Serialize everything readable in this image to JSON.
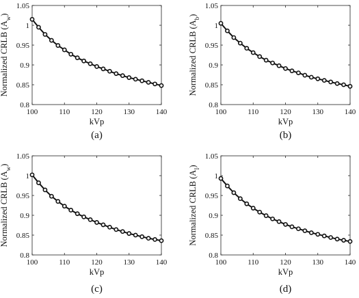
{
  "chart_data": [
    {
      "type": "line",
      "panel_label": "(a)",
      "xlabel": "kVp",
      "ylabel": "Normalized CRLB (A",
      "ylabel_sub": "w",
      "xlim": [
        100,
        140
      ],
      "ylim": [
        0.8,
        1.05
      ],
      "xticks": [
        "100",
        "110",
        "120",
        "130",
        "140"
      ],
      "yticks": [
        "0.8",
        "0.85",
        "0.9",
        "0.95",
        "1",
        "1.05"
      ],
      "x": [
        100,
        102,
        104,
        106,
        108,
        110,
        112,
        114,
        116,
        118,
        120,
        122,
        124,
        126,
        128,
        130,
        132,
        134,
        136,
        138,
        140
      ],
      "y": [
        1.015,
        0.995,
        0.977,
        0.962,
        0.949,
        0.938,
        0.927,
        0.918,
        0.91,
        0.903,
        0.896,
        0.89,
        0.884,
        0.878,
        0.873,
        0.868,
        0.864,
        0.86,
        0.856,
        0.852,
        0.848
      ]
    },
    {
      "type": "line",
      "panel_label": "(b)",
      "xlabel": "kVp",
      "ylabel": "Normalized CRLB (A",
      "ylabel_sub": "b",
      "xlim": [
        100,
        140
      ],
      "ylim": [
        0.8,
        1.05
      ],
      "xticks": [
        "100",
        "110",
        "120",
        "130",
        "140"
      ],
      "yticks": [
        "0.8",
        "0.85",
        "0.9",
        "0.95",
        "1",
        "1.05"
      ],
      "x": [
        100,
        102,
        104,
        106,
        108,
        110,
        112,
        114,
        116,
        118,
        120,
        122,
        124,
        126,
        128,
        130,
        132,
        134,
        136,
        138,
        140
      ],
      "y": [
        1.005,
        0.986,
        0.969,
        0.955,
        0.942,
        0.931,
        0.921,
        0.912,
        0.905,
        0.898,
        0.891,
        0.885,
        0.88,
        0.874,
        0.869,
        0.865,
        0.861,
        0.857,
        0.853,
        0.85,
        0.846
      ]
    },
    {
      "type": "line",
      "panel_label": "(c)",
      "xlabel": "kVp",
      "ylabel": "Normalized CRLB (A",
      "ylabel_sub": "w",
      "xlim": [
        100,
        140
      ],
      "ylim": [
        0.8,
        1.05
      ],
      "xticks": [
        "100",
        "110",
        "120",
        "130",
        "140"
      ],
      "yticks": [
        "0.8",
        "0.85",
        "0.9",
        "0.95",
        "1",
        "1.05"
      ],
      "x": [
        100,
        102,
        104,
        106,
        108,
        110,
        112,
        114,
        116,
        118,
        120,
        122,
        124,
        126,
        128,
        130,
        132,
        134,
        136,
        138,
        140
      ],
      "y": [
        1.002,
        0.982,
        0.964,
        0.948,
        0.935,
        0.923,
        0.913,
        0.904,
        0.896,
        0.889,
        0.882,
        0.876,
        0.87,
        0.864,
        0.859,
        0.854,
        0.85,
        0.846,
        0.842,
        0.839,
        0.836
      ]
    },
    {
      "type": "line",
      "panel_label": "(d)",
      "xlabel": "kVp",
      "ylabel": "Normalized CRLB (A",
      "ylabel_sub": "I",
      "xlim": [
        100,
        140
      ],
      "ylim": [
        0.8,
        1.05
      ],
      "xticks": [
        "100",
        "110",
        "120",
        "130",
        "140"
      ],
      "yticks": [
        "0.8",
        "0.85",
        "0.9",
        "0.95",
        "1",
        "1.05"
      ],
      "x": [
        100,
        102,
        104,
        106,
        108,
        110,
        112,
        114,
        116,
        118,
        120,
        122,
        124,
        126,
        128,
        130,
        132,
        134,
        136,
        138,
        140
      ],
      "y": [
        0.993,
        0.974,
        0.957,
        0.942,
        0.929,
        0.918,
        0.908,
        0.899,
        0.891,
        0.884,
        0.877,
        0.871,
        0.866,
        0.861,
        0.856,
        0.852,
        0.848,
        0.844,
        0.84,
        0.837,
        0.834
      ]
    }
  ]
}
